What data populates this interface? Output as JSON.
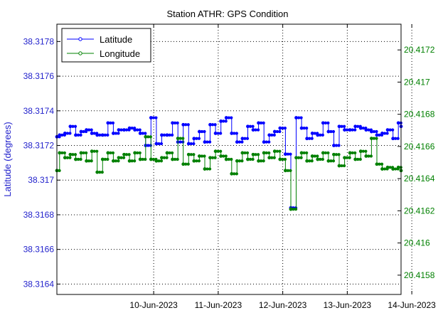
{
  "chart_data": {
    "type": "line",
    "title": "Station ATHR: GPS Condition",
    "ylabel_left": "Latitude (degrees)",
    "ylabel_right": "",
    "xlabel": "",
    "x_ticks": [
      "10-Jun-2023",
      "11-Jun-2023",
      "12-Jun-2023",
      "13-Jun-2023",
      "14-Jun-2023"
    ],
    "x_range": [
      "2023-06-09",
      "2023-06-14 08:00"
    ],
    "y_left_range": [
      38.31634,
      38.3179
    ],
    "y_left_ticks": [
      "38.3164",
      "38.3166",
      "38.3168",
      "38.317",
      "38.3172",
      "38.3174",
      "38.3176",
      "38.3178"
    ],
    "y_right_range": [
      20.41568,
      20.41736
    ],
    "y_right_ticks": [
      "20.4158",
      "20.416",
      "20.4162",
      "20.4164",
      "20.4166",
      "20.4168",
      "20.417",
      "20.4172"
    ],
    "grid": true,
    "legend": {
      "position": "top-left",
      "entries": [
        "Latitude",
        "Longitude"
      ]
    },
    "colors": {
      "latitude": "#0000ff",
      "longitude": "#008000",
      "left_axis": "#2222cc",
      "right_axis": "#008000"
    },
    "series": [
      {
        "name": "Latitude",
        "axis": "left",
        "x": [
          "2023-06-09 00:00",
          "2023-06-09 01:00",
          "2023-06-09 03:00",
          "2023-06-09 05:00",
          "2023-06-09 07:00",
          "2023-06-09 09:00",
          "2023-06-09 11:00",
          "2023-06-09 13:00",
          "2023-06-09 15:00",
          "2023-06-09 17:00",
          "2023-06-09 19:00",
          "2023-06-09 21:00",
          "2023-06-09 23:00",
          "2023-06-10 01:00",
          "2023-06-10 03:00",
          "2023-06-10 05:00",
          "2023-06-10 07:00",
          "2023-06-10 09:00",
          "2023-06-10 11:00",
          "2023-06-10 13:00",
          "2023-06-10 15:00",
          "2023-06-10 17:00",
          "2023-06-10 19:00",
          "2023-06-10 21:00",
          "2023-06-10 23:00",
          "2023-06-11 01:00",
          "2023-06-11 03:00",
          "2023-06-11 05:00",
          "2023-06-11 07:00",
          "2023-06-11 09:00",
          "2023-06-11 11:00",
          "2023-06-11 13:00",
          "2023-06-11 15:00",
          "2023-06-11 17:00",
          "2023-06-11 19:00",
          "2023-06-11 21:00",
          "2023-06-11 23:00",
          "2023-06-12 01:00",
          "2023-06-12 03:00",
          "2023-06-12 05:00",
          "2023-06-12 07:00",
          "2023-06-12 09:00",
          "2023-06-12 11:00",
          "2023-06-12 13:00",
          "2023-06-12 15:00",
          "2023-06-12 17:00",
          "2023-06-12 19:00",
          "2023-06-12 21:00",
          "2023-06-12 23:00",
          "2023-06-13 01:00",
          "2023-06-13 03:00",
          "2023-06-13 05:00",
          "2023-06-13 07:00",
          "2023-06-13 09:00",
          "2023-06-13 11:00",
          "2023-06-13 13:00",
          "2023-06-13 15:00",
          "2023-06-13 17:00",
          "2023-06-13 19:00",
          "2023-06-13 21:00",
          "2023-06-13 23:00",
          "2023-06-14 01:00",
          "2023-06-14 03:00",
          "2023-06-14 05:00",
          "2023-06-14 07:00",
          "2023-06-14 08:00"
        ],
        "values": [
          38.31725,
          38.31726,
          38.31727,
          38.31731,
          38.31726,
          38.31728,
          38.31729,
          38.31727,
          38.31726,
          38.31726,
          38.31733,
          38.31727,
          38.31729,
          38.31729,
          38.3173,
          38.31729,
          38.31727,
          38.3172,
          38.31736,
          38.31721,
          38.31726,
          38.31726,
          38.31733,
          38.31722,
          38.31732,
          38.31721,
          38.31724,
          38.31728,
          38.31722,
          38.31732,
          38.31727,
          38.31734,
          38.31736,
          38.31727,
          38.31722,
          38.31724,
          38.31731,
          38.31729,
          38.31733,
          38.31722,
          38.31726,
          38.31728,
          38.3173,
          38.31715,
          38.31684,
          38.31736,
          38.3173,
          38.31724,
          38.31727,
          38.31726,
          38.31733,
          38.31728,
          38.3172,
          38.31731,
          38.31729,
          38.31729,
          38.31731,
          38.3173,
          38.31729,
          38.31728,
          38.31726,
          38.31727,
          38.31729,
          38.31724,
          38.31733,
          38.31731
        ]
      },
      {
        "name": "Longitude",
        "axis": "right",
        "x": [
          "2023-06-09 00:00",
          "2023-06-09 01:00",
          "2023-06-09 03:00",
          "2023-06-09 05:00",
          "2023-06-09 07:00",
          "2023-06-09 09:00",
          "2023-06-09 11:00",
          "2023-06-09 13:00",
          "2023-06-09 15:00",
          "2023-06-09 17:00",
          "2023-06-09 19:00",
          "2023-06-09 21:00",
          "2023-06-09 23:00",
          "2023-06-10 01:00",
          "2023-06-10 03:00",
          "2023-06-10 05:00",
          "2023-06-10 07:00",
          "2023-06-10 09:00",
          "2023-06-10 11:00",
          "2023-06-10 13:00",
          "2023-06-10 15:00",
          "2023-06-10 17:00",
          "2023-06-10 19:00",
          "2023-06-10 21:00",
          "2023-06-10 23:00",
          "2023-06-11 01:00",
          "2023-06-11 03:00",
          "2023-06-11 05:00",
          "2023-06-11 07:00",
          "2023-06-11 09:00",
          "2023-06-11 11:00",
          "2023-06-11 13:00",
          "2023-06-11 15:00",
          "2023-06-11 17:00",
          "2023-06-11 19:00",
          "2023-06-11 21:00",
          "2023-06-11 23:00",
          "2023-06-12 01:00",
          "2023-06-12 03:00",
          "2023-06-12 05:00",
          "2023-06-12 07:00",
          "2023-06-12 09:00",
          "2023-06-12 11:00",
          "2023-06-12 13:00",
          "2023-06-12 15:00",
          "2023-06-12 17:00",
          "2023-06-12 19:00",
          "2023-06-12 21:00",
          "2023-06-12 23:00",
          "2023-06-13 01:00",
          "2023-06-13 03:00",
          "2023-06-13 05:00",
          "2023-06-13 07:00",
          "2023-06-13 09:00",
          "2023-06-13 11:00",
          "2023-06-13 13:00",
          "2023-06-13 15:00",
          "2023-06-13 17:00",
          "2023-06-13 19:00",
          "2023-06-13 21:00",
          "2023-06-13 23:00",
          "2023-06-14 01:00",
          "2023-06-14 03:00",
          "2023-06-14 05:00",
          "2023-06-14 07:00",
          "2023-06-14 08:00"
        ],
        "values": [
          20.41645,
          20.41656,
          20.41653,
          20.41655,
          20.41652,
          20.41656,
          20.41651,
          20.41657,
          20.41644,
          20.41652,
          20.41656,
          20.41651,
          20.41653,
          20.41655,
          20.41651,
          20.41656,
          20.41652,
          20.41666,
          20.41652,
          20.41651,
          20.41653,
          20.41656,
          20.41652,
          20.41665,
          20.41649,
          20.41655,
          20.41651,
          20.41654,
          20.41646,
          20.41653,
          20.41657,
          20.41654,
          20.41652,
          20.41643,
          20.41651,
          20.41656,
          20.41652,
          20.41655,
          20.41651,
          20.41656,
          20.41653,
          20.41657,
          20.41652,
          20.41645,
          20.41621,
          20.41653,
          20.41656,
          20.41651,
          20.41654,
          20.41652,
          20.41656,
          20.41651,
          20.41655,
          20.41648,
          20.41653,
          20.41656,
          20.41652,
          20.41657,
          20.41654,
          20.41665,
          20.41649,
          20.41646,
          20.41647,
          20.41646,
          20.41647,
          20.41645
        ]
      }
    ]
  }
}
